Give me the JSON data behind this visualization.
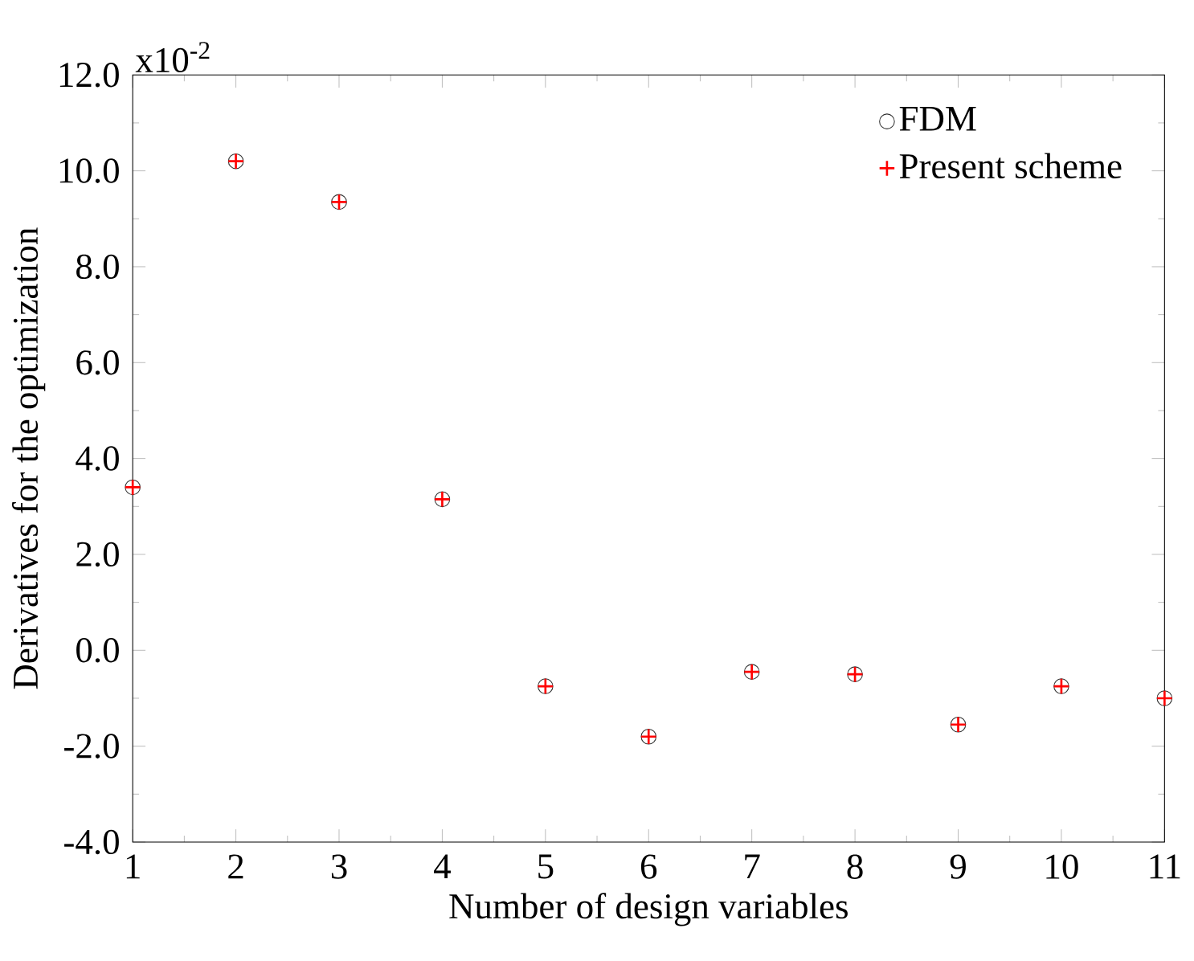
{
  "chart_data": {
    "type": "scatter",
    "xlabel": "Number of design variables",
    "ylabel": "Derivatives for the optimization",
    "annotations": [
      "x10$^{-2}$"
    ],
    "x": [
      1,
      2,
      3,
      4,
      5,
      6,
      7,
      8,
      9,
      10,
      11
    ],
    "series": [
      {
        "name": "FDM",
        "color": "#333333",
        "marker": "circle",
        "values": [
          3.4,
          10.2,
          9.35,
          3.15,
          -0.75,
          -1.8,
          -0.45,
          -0.5,
          -1.55,
          -0.75,
          -1.0
        ]
      },
      {
        "name": "Present scheme",
        "color": "#ff0000",
        "marker": "cross",
        "values": [
          3.4,
          10.2,
          9.35,
          3.15,
          -0.75,
          -1.8,
          -0.45,
          -0.5,
          -1.55,
          -0.75,
          -1.0
        ]
      }
    ],
    "xlim": [
      1,
      11
    ],
    "xticks": [
      1,
      2,
      3,
      4,
      5,
      6,
      7,
      8,
      9,
      10,
      11
    ],
    "ylim": [
      -4,
      12
    ],
    "yticks": [
      {
        "value": -4,
        "label": "-4.0"
      },
      {
        "value": -2,
        "label": "-2.0"
      },
      {
        "value": 0,
        "label": "0.0"
      },
      {
        "value": 2,
        "label": "2.0"
      },
      {
        "value": 4,
        "label": "4.0"
      },
      {
        "value": 6,
        "label": "6.0"
      },
      {
        "value": 8,
        "label": "8.0"
      },
      {
        "value": 10,
        "label": "10.0"
      },
      {
        "value": 12,
        "label": "12.0"
      }
    ],
    "legend": "top right",
    "grid": false
  }
}
